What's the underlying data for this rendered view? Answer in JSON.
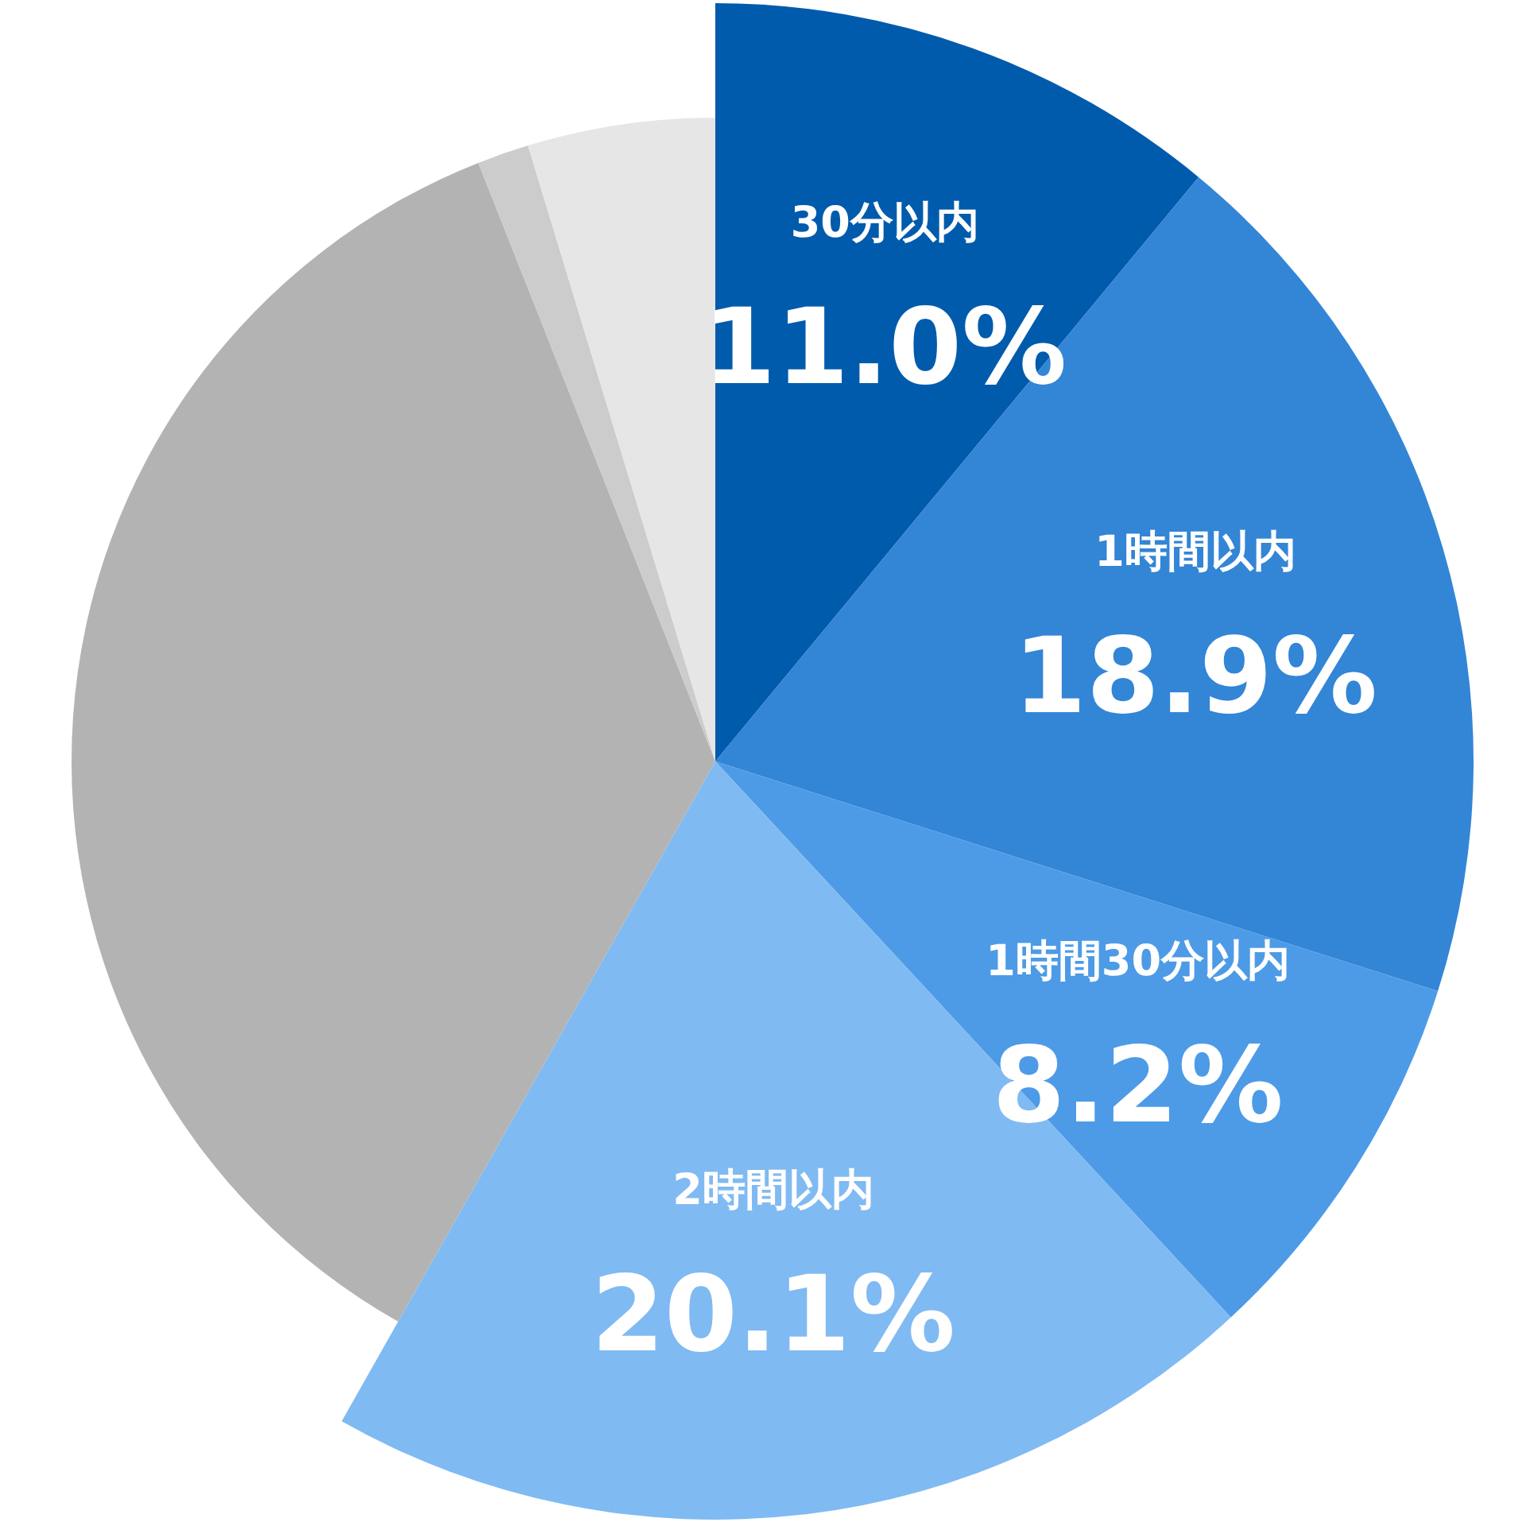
{
  "chart_data": {
    "type": "pie",
    "categories": [
      "30分以内",
      "1時間以内",
      "1時間30分以内",
      "2時間以内",
      null,
      null,
      null
    ],
    "values": [
      11.0,
      18.9,
      8.2,
      20.1,
      35.8,
      1.3,
      4.7
    ],
    "value_labels": [
      "11.0%",
      "18.9%",
      "8.2%",
      "20.1%",
      null,
      null,
      null
    ],
    "colors": [
      "#005bac",
      "#3385d6",
      "#4d9be6",
      "#80baf2",
      "#b3b3b3",
      "#cccccc",
      "#e6e6e6"
    ]
  }
}
